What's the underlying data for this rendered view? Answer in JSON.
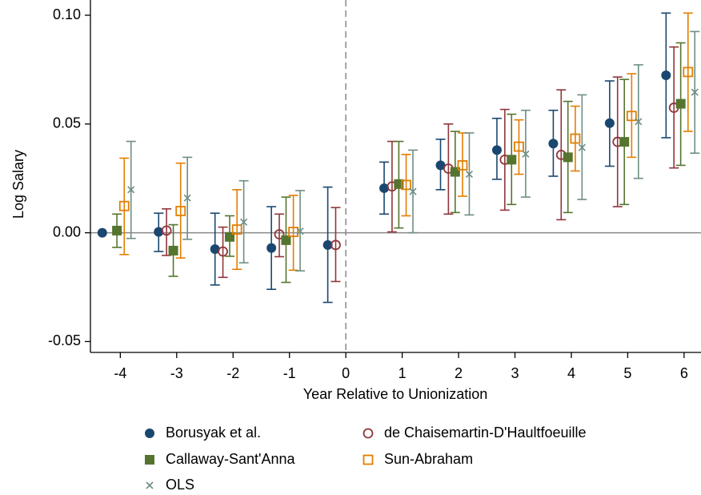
{
  "chart_data": {
    "type": "errorbar",
    "xlabel": "Year Relative to Unionization",
    "ylabel": "Log Salary",
    "x": [
      -4,
      -3,
      -2,
      -1,
      0,
      1,
      2,
      3,
      4,
      5,
      6
    ],
    "xlim": [
      -4.53,
      6.3
    ],
    "ylim": [
      -0.055,
      0.107
    ],
    "xticks": [
      -4,
      -3,
      -2,
      -1,
      0,
      1,
      2,
      3,
      4,
      5,
      6
    ],
    "yticks": [
      {
        "value": -0.05,
        "label": "-0.05"
      },
      {
        "value": 0,
        "label": "0.00"
      },
      {
        "value": 0.05,
        "label": "0.05"
      },
      {
        "value": 0.1,
        "label": "0.10"
      }
    ],
    "vline": 0,
    "hline": 0,
    "legend": "bottom",
    "series": [
      {
        "name": "Borusyak et al.",
        "color": "#1a476f",
        "marker": "filled-circle",
        "values": [
          0,
          0.0004,
          -0.0075,
          -0.007,
          -0.0056,
          0.0205,
          0.031,
          0.038,
          0.041,
          0.0504,
          0.0724
        ],
        "lower": [
          null,
          -0.0086,
          -0.024,
          -0.026,
          -0.032,
          0.0086,
          0.0198,
          0.0246,
          0.026,
          0.0306,
          0.0437
        ],
        "upper": [
          null,
          0.009,
          0.009,
          0.012,
          0.021,
          0.0325,
          0.043,
          0.0526,
          0.0563,
          0.0698,
          0.101
        ]
      },
      {
        "name": "de Chaisemartin-D'Haultfoeuille",
        "color": "#90353b",
        "marker": "open-circle",
        "values": [
          null,
          0.001,
          -0.0086,
          -0.0007,
          -0.0056,
          0.0213,
          0.0295,
          0.0336,
          0.0358,
          0.0418,
          0.0575
        ],
        "lower": [
          null,
          -0.0104,
          -0.0205,
          -0.011,
          -0.0224,
          0.0004,
          0.0086,
          0.0104,
          0.006,
          0.012,
          0.0298
        ],
        "upper": [
          null,
          0.011,
          0.0026,
          0.0086,
          0.0116,
          0.042,
          0.05,
          0.0567,
          0.0657,
          0.0716,
          0.0854
        ]
      },
      {
        "name": "Callaway-Sant'Anna",
        "color": "#55752f",
        "marker": "filled-square",
        "values": [
          0.001,
          -0.0082,
          -0.0019,
          -0.0034,
          null,
          0.0224,
          0.028,
          0.0336,
          0.0347,
          0.0418,
          0.0593
        ],
        "lower": [
          -0.0067,
          -0.02,
          -0.0108,
          -0.0228,
          null,
          0.0022,
          0.0093,
          0.013,
          0.0093,
          0.013,
          0.031
        ],
        "upper": [
          0.0086,
          0.0037,
          0.0078,
          0.0164,
          null,
          0.042,
          0.0466,
          0.0545,
          0.0604,
          0.0705,
          0.0873
        ]
      },
      {
        "name": "Sun-Abraham",
        "color": "#e37e00",
        "marker": "open-square",
        "values": [
          0.0123,
          0.01,
          0.0015,
          0.0004,
          null,
          0.022,
          0.031,
          0.0396,
          0.0433,
          0.0537,
          0.0739
        ],
        "lower": [
          -0.01,
          -0.0116,
          -0.0168,
          -0.0172,
          null,
          0.0078,
          0.0168,
          0.0269,
          0.0284,
          0.0347,
          0.0466
        ],
        "upper": [
          0.0343,
          0.032,
          0.0198,
          0.0172,
          null,
          0.036,
          0.0459,
          0.0519,
          0.0582,
          0.0731,
          0.101
        ]
      },
      {
        "name": "OLS",
        "color": "#6e8e84",
        "marker": "x",
        "values": [
          0.0198,
          0.016,
          0.0049,
          0.0007,
          null,
          0.019,
          0.0269,
          0.0362,
          0.0392,
          0.0511,
          0.0646
        ],
        "lower": [
          -0.0026,
          -0.003,
          -0.0138,
          -0.0175,
          null,
          0,
          0.0082,
          0.0164,
          0.0153,
          0.025,
          0.0366
        ],
        "upper": [
          0.042,
          0.0347,
          0.0239,
          0.0194,
          null,
          0.038,
          0.0459,
          0.0563,
          0.0634,
          0.0772,
          0.0925
        ]
      }
    ]
  }
}
